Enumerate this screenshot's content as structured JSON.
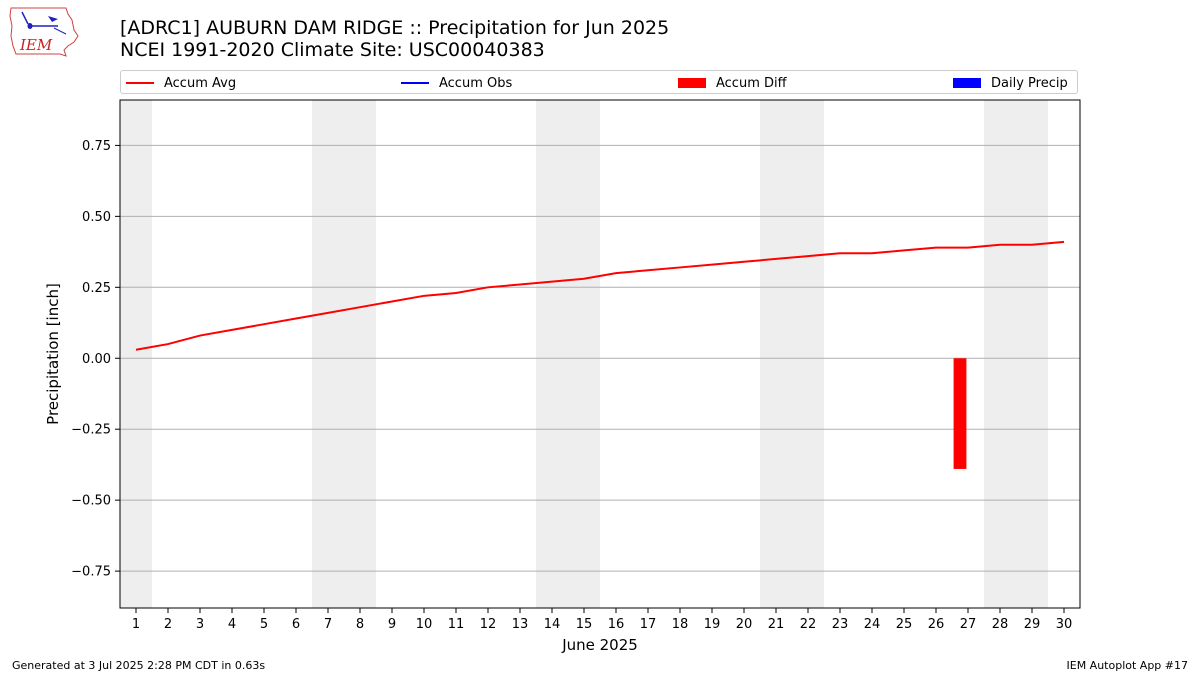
{
  "header": {
    "title_line1": "[ADRC1] AUBURN DAM RIDGE :: Precipitation for Jun 2025",
    "title_line2": "NCEI 1991-2020 Climate Site: USC00040383"
  },
  "logo": {
    "text": "IEM"
  },
  "footer": {
    "left": "Generated at 3 Jul 2025 2:28 PM CDT in 0.63s",
    "right": "IEM Autoplot App #17"
  },
  "legend": {
    "items": [
      {
        "label": "Accum Avg",
        "kind": "line",
        "color": "#ff0000"
      },
      {
        "label": "Accum Obs",
        "kind": "line",
        "color": "#0000ff"
      },
      {
        "label": "Accum Diff",
        "kind": "patch",
        "color": "#ff0000"
      },
      {
        "label": "Daily Precip",
        "kind": "patch",
        "color": "#0000ff"
      }
    ]
  },
  "chart_data": {
    "type": "line",
    "xlabel": "June 2025",
    "ylabel": "Precipitation [inch]",
    "x": [
      1,
      2,
      3,
      4,
      5,
      6,
      7,
      8,
      9,
      10,
      11,
      12,
      13,
      14,
      15,
      16,
      17,
      18,
      19,
      20,
      21,
      22,
      23,
      24,
      25,
      26,
      27,
      28,
      29,
      30
    ],
    "xlim": [
      0.5,
      30.5
    ],
    "ylim": [
      -0.88,
      0.91
    ],
    "yticks": [
      -0.75,
      -0.5,
      -0.25,
      0.0,
      0.25,
      0.5,
      0.75
    ],
    "ytick_labels": [
      "−0.75",
      "−0.50",
      "−0.25",
      "0.00",
      "0.25",
      "0.50",
      "0.75"
    ],
    "grid": "horizontal",
    "weekend_days": [
      1,
      7,
      8,
      14,
      15,
      21,
      22,
      28,
      29
    ],
    "weekend_color": "#eeeeee",
    "series": [
      {
        "name": "Accum Avg",
        "kind": "line",
        "color": "#ff0000",
        "values": [
          0.03,
          0.05,
          0.08,
          0.1,
          0.12,
          0.14,
          0.16,
          0.18,
          0.2,
          0.22,
          0.23,
          0.25,
          0.26,
          0.27,
          0.28,
          0.3,
          0.31,
          0.32,
          0.33,
          0.34,
          0.35,
          0.36,
          0.37,
          0.37,
          0.38,
          0.39,
          0.39,
          0.4,
          0.4,
          0.41
        ]
      },
      {
        "name": "Accum Diff",
        "kind": "bar",
        "color": "#ff0000",
        "points": [
          {
            "x": 26.75,
            "value": -0.39
          }
        ]
      }
    ]
  }
}
